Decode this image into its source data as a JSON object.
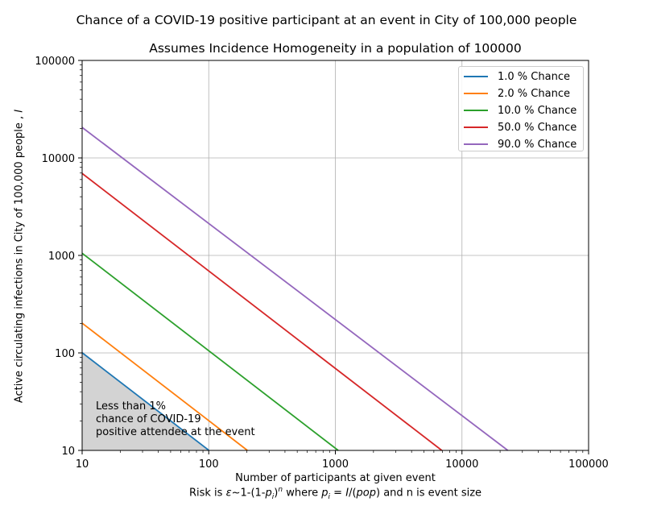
{
  "chart_data": {
    "type": "line",
    "suptitle": "Chance of a COVID-19 positive participant at an event in City of 100,000 people",
    "title": "Assumes Incidence Homogeneity in a population of 100000",
    "xlabel": "Number of participants at given event",
    "caption": {
      "part1": "Risk is ",
      "eps": "ε",
      "part2": "~1-(1-",
      "p": "p",
      "sub_i": "i",
      "part3": ")",
      "sup_n": "n",
      "part4": " where ",
      "p2": "p",
      "sub_i2": "i",
      "part5": " = ",
      "I": "I",
      "part6": "/(",
      "pop": "pop",
      "part7": ") and n is event size"
    },
    "ylabel": "Active circulating infections in City of 100,000 people ,",
    "ylabel_var": "I",
    "x_scale": "log",
    "y_scale": "log",
    "xlim": [
      10,
      100000
    ],
    "ylim": [
      10,
      100000
    ],
    "x_ticks": [
      "10",
      "100",
      "1000",
      "10000",
      "100000"
    ],
    "y_ticks": [
      "10",
      "100",
      "1000",
      "10000",
      "100000"
    ],
    "grid": true,
    "legend_position": "top-right",
    "series": [
      {
        "name": "1.0 % Chance",
        "color": "#1f77b4",
        "x": [
          10,
          100
        ],
        "y": [
          100.5,
          10.05
        ]
      },
      {
        "name": "2.0 % Chance",
        "color": "#ff7f0e",
        "x": [
          10,
          202
        ],
        "y": [
          202,
          10
        ]
      },
      {
        "name": "10.0 % Chance",
        "color": "#2ca02c",
        "x": [
          10,
          1053
        ],
        "y": [
          1053,
          10
        ]
      },
      {
        "name": "50.0 % Chance",
        "color": "#d62728",
        "x": [
          10,
          6931
        ],
        "y": [
          6931,
          10
        ]
      },
      {
        "name": "90.0 % Chance",
        "color": "#9467bd",
        "x": [
          10,
          23025
        ],
        "y": [
          20567,
          10
        ]
      }
    ],
    "shaded_region": {
      "label_lines": [
        "Less than 1%",
        "chance of COVID-19",
        "positive attendee at the event"
      ],
      "color": "#d3d3d3"
    }
  }
}
